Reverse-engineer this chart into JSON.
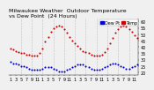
{
  "title": "Milwaukee Weather  Outdoor Temperature\nvs Dew Point  (24 Hours)",
  "bg_color": "#f0f0f0",
  "plot_bg_color": "#f0f0f0",
  "grid_color": "#888888",
  "temp_color": "#cc0000",
  "dew_color": "#0000cc",
  "legend_temp_label": "Temp",
  "legend_dew_label": "Dew Pt",
  "hours": [
    0,
    1,
    2,
    3,
    4,
    5,
    6,
    7,
    8,
    9,
    10,
    11,
    12,
    13,
    14,
    15,
    16,
    17,
    18,
    19,
    20,
    21,
    22,
    23,
    24,
    25,
    26,
    27,
    28,
    29,
    30,
    31,
    32,
    33,
    34,
    35,
    36,
    37,
    38,
    39,
    40,
    41,
    42,
    43,
    44,
    45,
    46,
    47
  ],
  "temp_values": [
    39,
    38,
    37,
    36,
    35,
    35,
    34,
    34,
    33,
    33,
    33,
    35,
    39,
    44,
    48,
    52,
    55,
    56,
    57,
    56,
    54,
    51,
    48,
    45,
    43,
    41,
    39,
    37,
    36,
    35,
    34,
    33,
    33,
    33,
    34,
    36,
    39,
    43,
    47,
    51,
    54,
    56,
    57,
    56,
    54,
    52,
    49,
    47
  ],
  "dew_values": [
    28,
    27,
    27,
    26,
    25,
    25,
    24,
    23,
    22,
    22,
    22,
    22,
    23,
    24,
    24,
    24,
    23,
    22,
    21,
    21,
    21,
    22,
    23,
    24,
    25,
    26,
    26,
    26,
    25,
    24,
    23,
    22,
    22,
    22,
    23,
    24,
    25,
    26,
    27,
    27,
    26,
    25,
    24,
    23,
    23,
    24,
    25,
    26
  ],
  "ylim": [
    18,
    62
  ],
  "ytick_positions": [
    20,
    25,
    30,
    35,
    40,
    45,
    50,
    55,
    60
  ],
  "ytick_labels": [
    "20",
    "25",
    "30",
    "35",
    "40",
    "45",
    "50",
    "55",
    "60"
  ],
  "xlim": [
    -0.5,
    47.5
  ],
  "xtick_positions": [
    0,
    2,
    4,
    6,
    8,
    10,
    12,
    14,
    16,
    18,
    20,
    22,
    24,
    26,
    28,
    30,
    32,
    34,
    36,
    38,
    40,
    42,
    44,
    46
  ],
  "xtick_labels": [
    "1",
    "3",
    "5",
    "7",
    "9",
    "11",
    "1",
    "3",
    "5",
    "7",
    "9",
    "11",
    "1",
    "3",
    "5",
    "7",
    "9",
    "11",
    "1",
    "3",
    "5",
    "7",
    "9",
    "11"
  ],
  "grid_x_positions": [
    4,
    8,
    12,
    16,
    20,
    24,
    28,
    32,
    36,
    40,
    44
  ],
  "title_fontsize": 4.5,
  "tick_fontsize": 3.5,
  "markersize": 1.5,
  "legend_fontsize": 3.5
}
